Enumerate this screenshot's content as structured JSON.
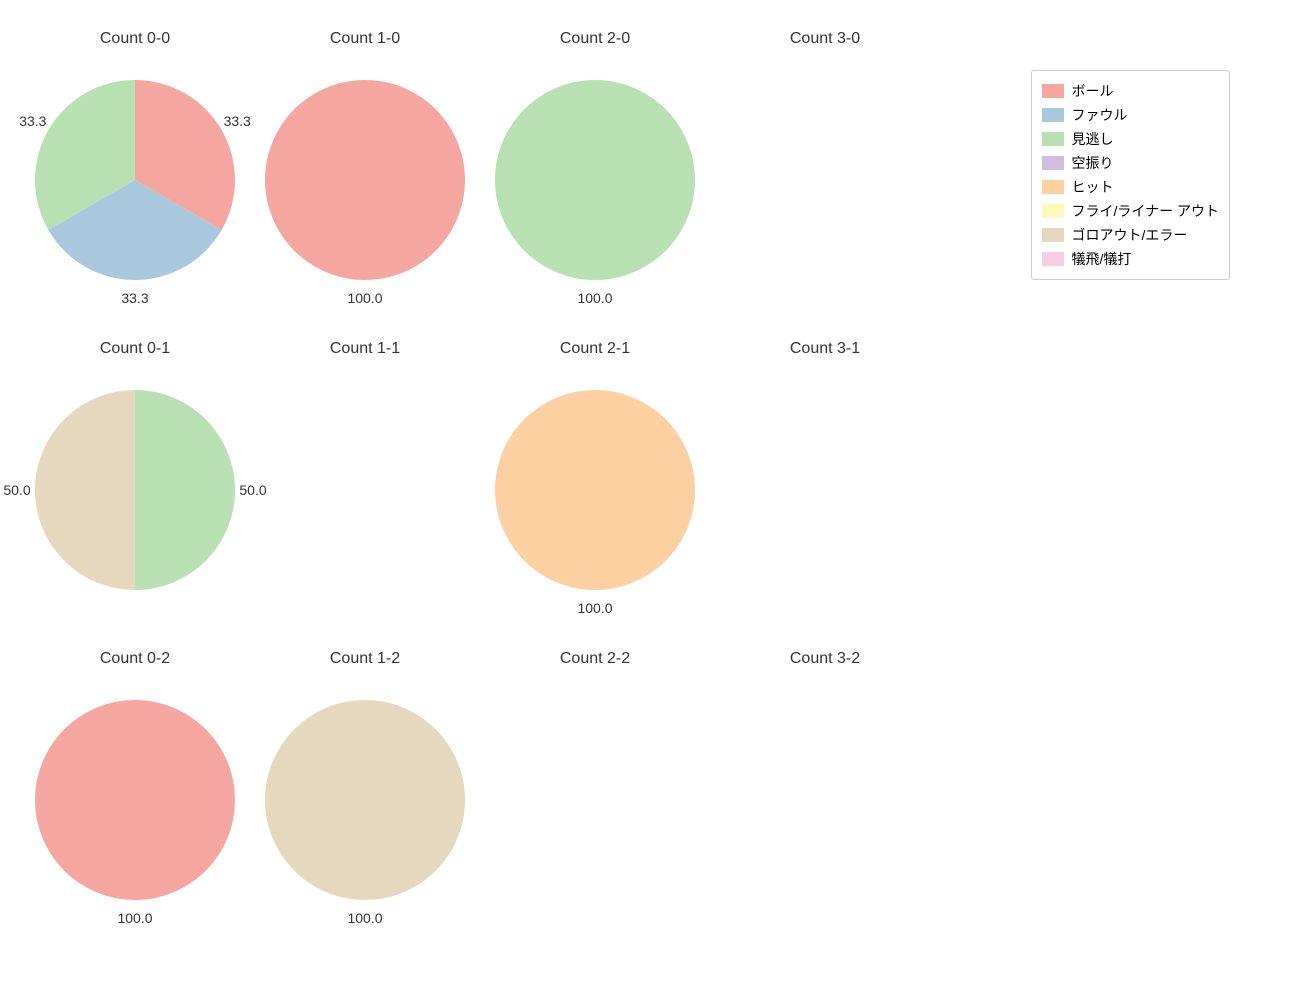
{
  "background_color": "#ffffff",
  "title_fontsize": 16,
  "label_fontsize": 14,
  "pie_radius": 100,
  "label_radius_inside": 60,
  "label_radius_outside": 118,
  "categories": [
    {
      "key": "ball",
      "label": "ボール",
      "color": "#f6a6a0"
    },
    {
      "key": "foul",
      "label": "ファウル",
      "color": "#a9c7dd"
    },
    {
      "key": "look",
      "label": "見逃し",
      "color": "#b8e0b3"
    },
    {
      "key": "swing",
      "label": "空振り",
      "color": "#d0bedc"
    },
    {
      "key": "hit",
      "label": "ヒット",
      "color": "#fdd0a2"
    },
    {
      "key": "flyout",
      "label": "フライ/ライナー アウト",
      "color": "#fbfab8"
    },
    {
      "key": "groundout",
      "label": "ゴロアウト/エラー",
      "color": "#e5d8be"
    },
    {
      "key": "sac",
      "label": "犠飛/犠打",
      "color": "#f8cde3"
    }
  ],
  "legend": {
    "border_color": "#cccccc"
  },
  "panels": [
    {
      "title": "Count 0-0",
      "slices": [
        {
          "key": "ball",
          "value": 33.3
        },
        {
          "key": "foul",
          "value": 33.3
        },
        {
          "key": "look",
          "value": 33.3
        }
      ],
      "labels_outside": true
    },
    {
      "title": "Count 1-0",
      "slices": [
        {
          "key": "ball",
          "value": 100.0
        }
      ],
      "labels_outside": false
    },
    {
      "title": "Count 2-0",
      "slices": [
        {
          "key": "look",
          "value": 100.0
        }
      ],
      "labels_outside": false
    },
    {
      "title": "Count 3-0",
      "slices": []
    },
    {
      "title": "Count 0-1",
      "slices": [
        {
          "key": "look",
          "value": 50.0
        },
        {
          "key": "groundout",
          "value": 50.0
        }
      ],
      "labels_outside": true
    },
    {
      "title": "Count 1-1",
      "slices": []
    },
    {
      "title": "Count 2-1",
      "slices": [
        {
          "key": "hit",
          "value": 100.0
        }
      ],
      "labels_outside": false
    },
    {
      "title": "Count 3-1",
      "slices": []
    },
    {
      "title": "Count 0-2",
      "slices": [
        {
          "key": "ball",
          "value": 100.0
        }
      ],
      "labels_outside": false
    },
    {
      "title": "Count 1-2",
      "slices": [
        {
          "key": "groundout",
          "value": 100.0
        }
      ],
      "labels_outside": false
    },
    {
      "title": "Count 2-2",
      "slices": []
    },
    {
      "title": "Count 3-2",
      "slices": []
    }
  ]
}
